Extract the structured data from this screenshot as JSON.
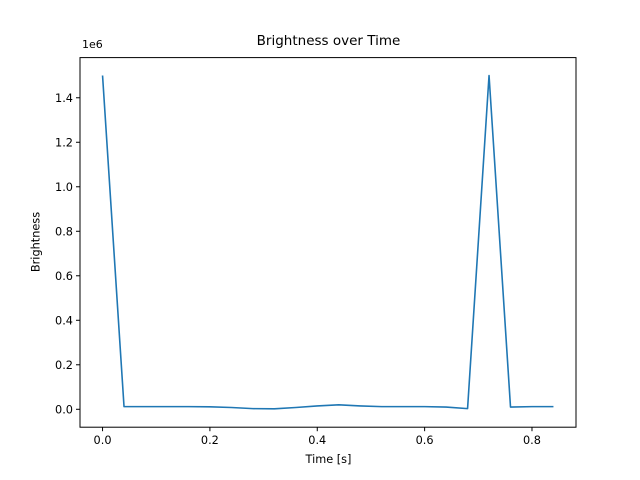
{
  "figure": {
    "background": "#ffffff",
    "text_color": "#000000",
    "spine_color": "#000000"
  },
  "chart_data": {
    "type": "line",
    "title": "Brightness over Time",
    "xlabel": "Time [s]",
    "ylabel": "Brightness",
    "y_offset_label": "1e6",
    "grid": false,
    "legend": null,
    "line_color": "#1f77b4",
    "series": [
      {
        "name": "Brightness",
        "x": [
          0.0,
          0.04,
          0.08,
          0.12,
          0.16,
          0.2,
          0.24,
          0.28,
          0.32,
          0.36,
          0.4,
          0.44,
          0.48,
          0.52,
          0.56,
          0.6,
          0.64,
          0.68,
          0.72,
          0.76,
          0.8,
          0.84
        ],
        "y": [
          1500000,
          12000,
          12000,
          12000,
          12000,
          11000,
          8000,
          3000,
          2000,
          8000,
          15000,
          20000,
          15000,
          12000,
          12000,
          12000,
          10000,
          3000,
          1500000,
          10000,
          12000,
          12000
        ]
      }
    ],
    "xlim": [
      -0.042,
      0.882
    ],
    "ylim": [
      -80500,
      1580500
    ],
    "xticks": [
      0.0,
      0.2,
      0.4,
      0.6,
      0.8
    ],
    "xtick_labels": [
      "0.0",
      "0.2",
      "0.4",
      "0.6",
      "0.8"
    ],
    "yticks": [
      0,
      200000,
      400000,
      600000,
      800000,
      1000000,
      1200000,
      1400000
    ],
    "ytick_labels": [
      "0.0",
      "0.2",
      "0.4",
      "0.6",
      "0.8",
      "1.0",
      "1.2",
      "1.4"
    ]
  }
}
